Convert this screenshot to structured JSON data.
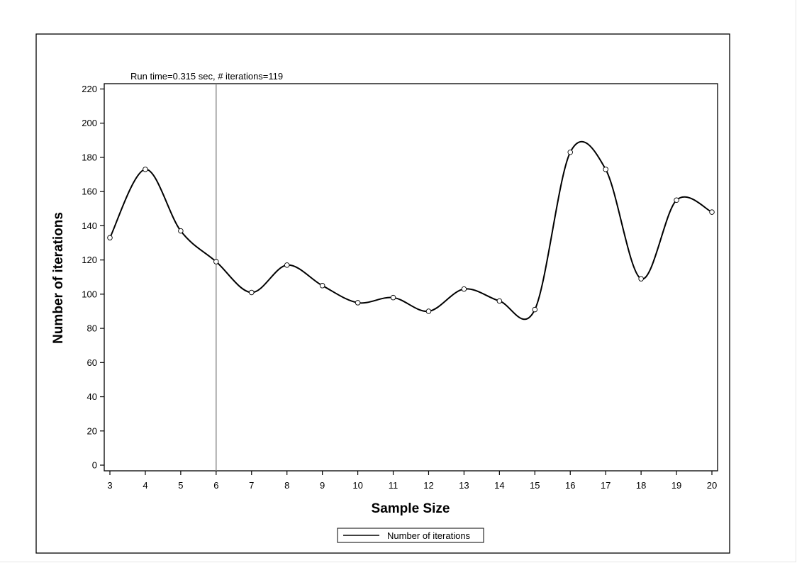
{
  "chart_data": {
    "type": "line",
    "title": "",
    "annotation": "Run time=0.315 sec, # iterations=119",
    "xlabel": "Sample Size",
    "ylabel": "Number of iterations",
    "xlim": [
      3,
      20
    ],
    "ylim": [
      0,
      220
    ],
    "x_ticks": [
      3,
      4,
      5,
      6,
      7,
      8,
      9,
      10,
      11,
      12,
      13,
      14,
      15,
      16,
      17,
      18,
      19,
      20
    ],
    "y_ticks": [
      0,
      20,
      40,
      60,
      80,
      100,
      120,
      140,
      160,
      180,
      200,
      220
    ],
    "reference_line_x": 6,
    "series": [
      {
        "name": "Number of iterations",
        "x": [
          3,
          4,
          5,
          6,
          7,
          8,
          9,
          10,
          11,
          12,
          13,
          14,
          15,
          16,
          17,
          18,
          19,
          20
        ],
        "values": [
          133,
          173,
          137,
          119,
          101,
          117,
          105,
          95,
          98,
          90,
          103,
          96,
          91,
          183,
          173,
          109,
          155,
          148
        ]
      }
    ],
    "grid": false,
    "legend_position": "bottom-center",
    "colors": {
      "line": "#000000",
      "reference_line": "#808080",
      "markers": "#000000"
    }
  }
}
